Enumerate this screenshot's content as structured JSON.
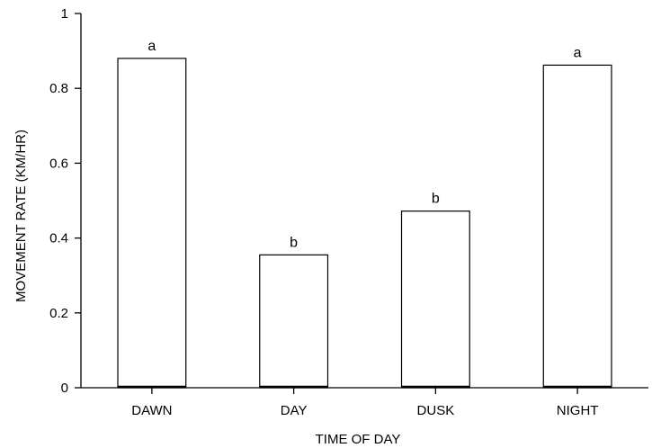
{
  "chart_data": {
    "type": "bar",
    "categories": [
      "DAWN",
      "DAY",
      "DUSK",
      "NIGHT"
    ],
    "values": [
      0.88,
      0.355,
      0.472,
      0.862
    ],
    "bar_labels": [
      "a",
      "b",
      "b",
      "a"
    ],
    "xlabel": "TIME OF DAY",
    "ylabel": "MOVEMENT RATE (KM/HR)",
    "ylim": [
      0,
      1
    ],
    "yticks": [
      0,
      0.2,
      0.4,
      0.6,
      0.8,
      1
    ],
    "ytick_labels": [
      "0",
      "0.2",
      "0.4",
      "0.6",
      "0.8",
      "1"
    ],
    "grid": false,
    "bar_fill": "#ffffff",
    "bar_stroke": "#000000"
  }
}
